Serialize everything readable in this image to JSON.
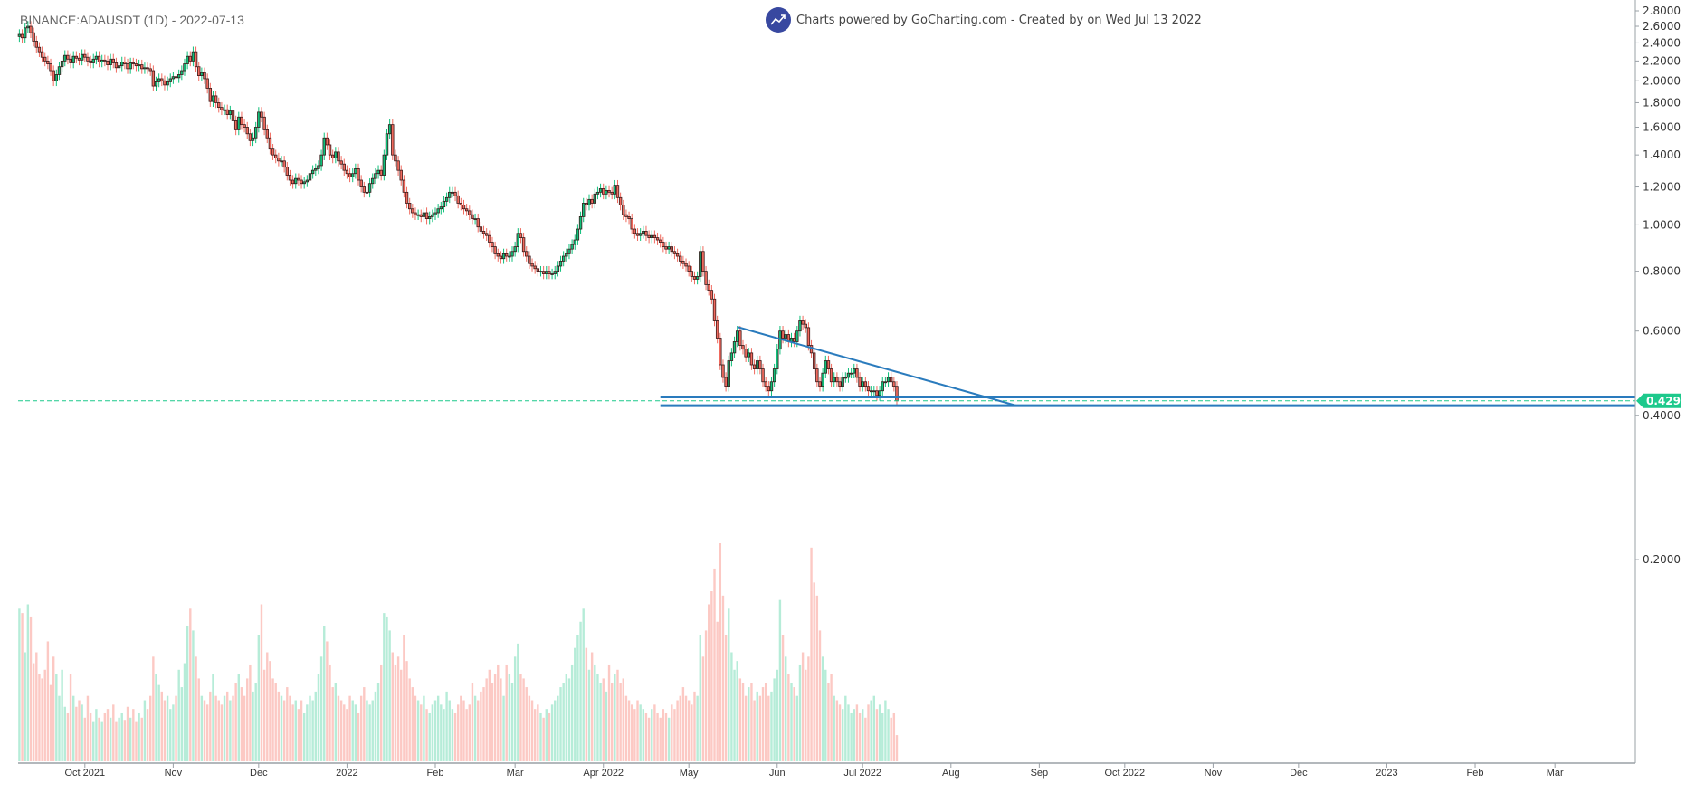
{
  "header": {
    "title": "BINANCE:ADAUSDT (1D) - 2022-07-13",
    "credit": "Charts powered by GoCharting.com - Created by  on Wed Jul 13 2022",
    "logo_icon": "trending-up-icon"
  },
  "chart_data": {
    "type": "candlestick",
    "symbol": "BINANCE:ADAUSDT",
    "interval": "1D",
    "last_date": "2022-07-13",
    "y_scale": "log",
    "ylim": [
      0.17,
      2.85
    ],
    "grid": false,
    "colors": {
      "up": "#0fbf7a",
      "down": "#f06a5e",
      "outline": "#3a1a1a",
      "volume_up": "#b6ecd8",
      "volume_down": "#fcc9c4",
      "trend": "#2a7bbd",
      "last_price": "#1dc98c"
    },
    "y_ticks": [
      "2.8000",
      "2.6000",
      "2.4000",
      "2.2000",
      "2.0000",
      "1.8000",
      "1.6000",
      "1.4000",
      "1.2000",
      "1.0000",
      "0.8000",
      "0.6000",
      "0.4000",
      "0.2000"
    ],
    "x_ticks": [
      {
        "label": "Oct 2021",
        "date": "2021-10-01"
      },
      {
        "label": "Nov",
        "date": "2021-11-01"
      },
      {
        "label": "Dec",
        "date": "2021-12-01"
      },
      {
        "label": "2022",
        "date": "2022-01-01"
      },
      {
        "label": "Feb",
        "date": "2022-02-01"
      },
      {
        "label": "Mar",
        "date": "2022-03-01"
      },
      {
        "label": "Apr 2022",
        "date": "2022-04-01"
      },
      {
        "label": "May",
        "date": "2022-05-01"
      },
      {
        "label": "Jun",
        "date": "2022-06-01"
      },
      {
        "label": "Jul 2022",
        "date": "2022-07-01"
      },
      {
        "label": "Aug",
        "date": "2022-08-01"
      },
      {
        "label": "Sep",
        "date": "2022-09-01"
      },
      {
        "label": "Oct 2022",
        "date": "2022-10-01"
      },
      {
        "label": "Nov",
        "date": "2022-11-01"
      },
      {
        "label": "Dec",
        "date": "2022-12-01"
      },
      {
        "label": "2023",
        "date": "2023-01-01"
      },
      {
        "label": "Feb",
        "date": "2023-02-01"
      },
      {
        "label": "Mar",
        "date": "2023-03-01"
      }
    ],
    "last_price": "0.4290",
    "close": [
      2.5,
      2.46,
      2.58,
      2.6,
      2.52,
      2.42,
      2.35,
      2.3,
      2.24,
      2.2,
      2.17,
      2.1,
      2.0,
      2.06,
      2.14,
      2.2,
      2.26,
      2.22,
      2.18,
      2.25,
      2.23,
      2.21,
      2.27,
      2.24,
      2.2,
      2.18,
      2.22,
      2.25,
      2.19,
      2.21,
      2.2,
      2.16,
      2.22,
      2.18,
      2.13,
      2.15,
      2.19,
      2.17,
      2.12,
      2.18,
      2.17,
      2.15,
      2.16,
      2.12,
      2.13,
      2.12,
      2.1,
      1.95,
      1.99,
      2.02,
      2.0,
      1.96,
      1.99,
      2.02,
      2.04,
      2.03,
      2.06,
      2.1,
      2.17,
      2.25,
      2.2,
      2.3,
      2.14,
      2.05,
      2.08,
      2.02,
      1.93,
      1.81,
      1.86,
      1.8,
      1.76,
      1.74,
      1.74,
      1.7,
      1.73,
      1.65,
      1.58,
      1.68,
      1.62,
      1.6,
      1.55,
      1.5,
      1.52,
      1.6,
      1.72,
      1.68,
      1.58,
      1.52,
      1.44,
      1.4,
      1.38,
      1.36,
      1.36,
      1.32,
      1.27,
      1.24,
      1.22,
      1.25,
      1.24,
      1.22,
      1.23,
      1.24,
      1.28,
      1.3,
      1.31,
      1.33,
      1.4,
      1.52,
      1.47,
      1.4,
      1.38,
      1.42,
      1.36,
      1.34,
      1.3,
      1.28,
      1.26,
      1.28,
      1.31,
      1.24,
      1.2,
      1.17,
      1.17,
      1.22,
      1.25,
      1.28,
      1.3,
      1.27,
      1.4,
      1.55,
      1.62,
      1.4,
      1.36,
      1.3,
      1.24,
      1.17,
      1.11,
      1.08,
      1.06,
      1.05,
      1.05,
      1.04,
      1.06,
      1.03,
      1.04,
      1.05,
      1.06,
      1.08,
      1.09,
      1.12,
      1.14,
      1.17,
      1.17,
      1.15,
      1.11,
      1.1,
      1.08,
      1.07,
      1.05,
      1.03,
      1.03,
      0.99,
      0.97,
      0.96,
      0.95,
      0.92,
      0.9,
      0.87,
      0.86,
      0.85,
      0.87,
      0.86,
      0.86,
      0.88,
      0.9,
      0.96,
      0.94,
      0.88,
      0.86,
      0.83,
      0.82,
      0.81,
      0.8,
      0.8,
      0.79,
      0.8,
      0.79,
      0.79,
      0.8,
      0.82,
      0.84,
      0.86,
      0.87,
      0.89,
      0.91,
      0.93,
      0.98,
      1.04,
      1.11,
      1.1,
      1.13,
      1.11,
      1.16,
      1.17,
      1.19,
      1.16,
      1.18,
      1.17,
      1.16,
      1.21,
      1.14,
      1.1,
      1.05,
      1.04,
      1.03,
      0.98,
      0.96,
      0.95,
      0.96,
      0.97,
      0.95,
      0.94,
      0.95,
      0.94,
      0.93,
      0.92,
      0.9,
      0.89,
      0.9,
      0.88,
      0.87,
      0.86,
      0.84,
      0.83,
      0.82,
      0.8,
      0.78,
      0.77,
      0.78,
      0.88,
      0.8,
      0.75,
      0.73,
      0.7,
      0.63,
      0.58,
      0.51,
      0.48,
      0.46,
      0.52,
      0.54,
      0.57,
      0.6,
      0.56,
      0.55,
      0.53,
      0.54,
      0.51,
      0.5,
      0.52,
      0.5,
      0.47,
      0.46,
      0.45,
      0.47,
      0.5,
      0.55,
      0.6,
      0.58,
      0.59,
      0.57,
      0.58,
      0.57,
      0.6,
      0.63,
      0.62,
      0.61,
      0.56,
      0.54,
      0.5,
      0.47,
      0.46,
      0.49,
      0.52,
      0.5,
      0.47,
      0.48,
      0.47,
      0.46,
      0.48,
      0.48,
      0.49,
      0.49,
      0.5,
      0.48,
      0.46,
      0.47,
      0.46,
      0.45,
      0.45,
      0.45,
      0.44,
      0.45,
      0.47,
      0.47,
      0.48,
      0.47,
      0.46,
      0.429
    ],
    "volume_relative": [
      70,
      68,
      50,
      72,
      66,
      45,
      50,
      40,
      38,
      42,
      55,
      35,
      48,
      40,
      30,
      42,
      25,
      22,
      40,
      30,
      25,
      28,
      26,
      20,
      30,
      22,
      18,
      24,
      20,
      18,
      22,
      24,
      20,
      26,
      18,
      20,
      22,
      19,
      25,
      20,
      24,
      18,
      22,
      20,
      28,
      24,
      30,
      48,
      40,
      35,
      32,
      28,
      30,
      24,
      26,
      30,
      42,
      34,
      45,
      62,
      70,
      60,
      48,
      38,
      30,
      28,
      26,
      32,
      40,
      30,
      28,
      26,
      30,
      32,
      28,
      30,
      36,
      40,
      34,
      30,
      38,
      44,
      32,
      36,
      58,
      72,
      42,
      50,
      46,
      38,
      36,
      32,
      30,
      28,
      34,
      30,
      26,
      28,
      24,
      28,
      22,
      26,
      30,
      28,
      32,
      40,
      48,
      62,
      55,
      44,
      34,
      36,
      30,
      28,
      26,
      24,
      30,
      28,
      26,
      22,
      30,
      34,
      28,
      26,
      28,
      32,
      36,
      44,
      68,
      66,
      60,
      50,
      44,
      48,
      42,
      58,
      46,
      38,
      34,
      30,
      28,
      26,
      30,
      24,
      22,
      26,
      28,
      30,
      26,
      24,
      32,
      28,
      24,
      22,
      26,
      30,
      28,
      24,
      26,
      36,
      30,
      28,
      32,
      34,
      38,
      42,
      36,
      40,
      44,
      38,
      30,
      44,
      40,
      36,
      48,
      54,
      40,
      38,
      34,
      30,
      28,
      24,
      26,
      22,
      20,
      24,
      22,
      26,
      28,
      30,
      34,
      36,
      40,
      38,
      44,
      52,
      58,
      64,
      70,
      52,
      42,
      50,
      44,
      40,
      36,
      38,
      32,
      44,
      36,
      40,
      42,
      36,
      38,
      30,
      28,
      26,
      24,
      28,
      26,
      24,
      22,
      20,
      24,
      26,
      22,
      20,
      24,
      22,
      20,
      26,
      24,
      28,
      30,
      34,
      30,
      28,
      26,
      32,
      30,
      58,
      48,
      60,
      72,
      78,
      88,
      64,
      100,
      76,
      58,
      70,
      50,
      42,
      46,
      38,
      36,
      30,
      34,
      36,
      28,
      32,
      30,
      34,
      36,
      30,
      32,
      38,
      42,
      74,
      58,
      48,
      40,
      36,
      34,
      30,
      44,
      50,
      42,
      48,
      98,
      82,
      76,
      60,
      48,
      42,
      36,
      40,
      30,
      28,
      26,
      24,
      30,
      26,
      22,
      24,
      26,
      22,
      24,
      20,
      26,
      28,
      30,
      24,
      26,
      22,
      28,
      24,
      20,
      22,
      12
    ],
    "drawings": [
      {
        "type": "trendline",
        "from": {
          "date": "2022-05-18",
          "price": 0.612
        },
        "to": {
          "date": "2022-08-24",
          "price": 0.419
        }
      },
      {
        "type": "horizontal",
        "from_date": "2022-04-21",
        "price": 0.437
      },
      {
        "type": "horizontal",
        "from_date": "2022-04-21",
        "price": 0.419
      }
    ]
  }
}
